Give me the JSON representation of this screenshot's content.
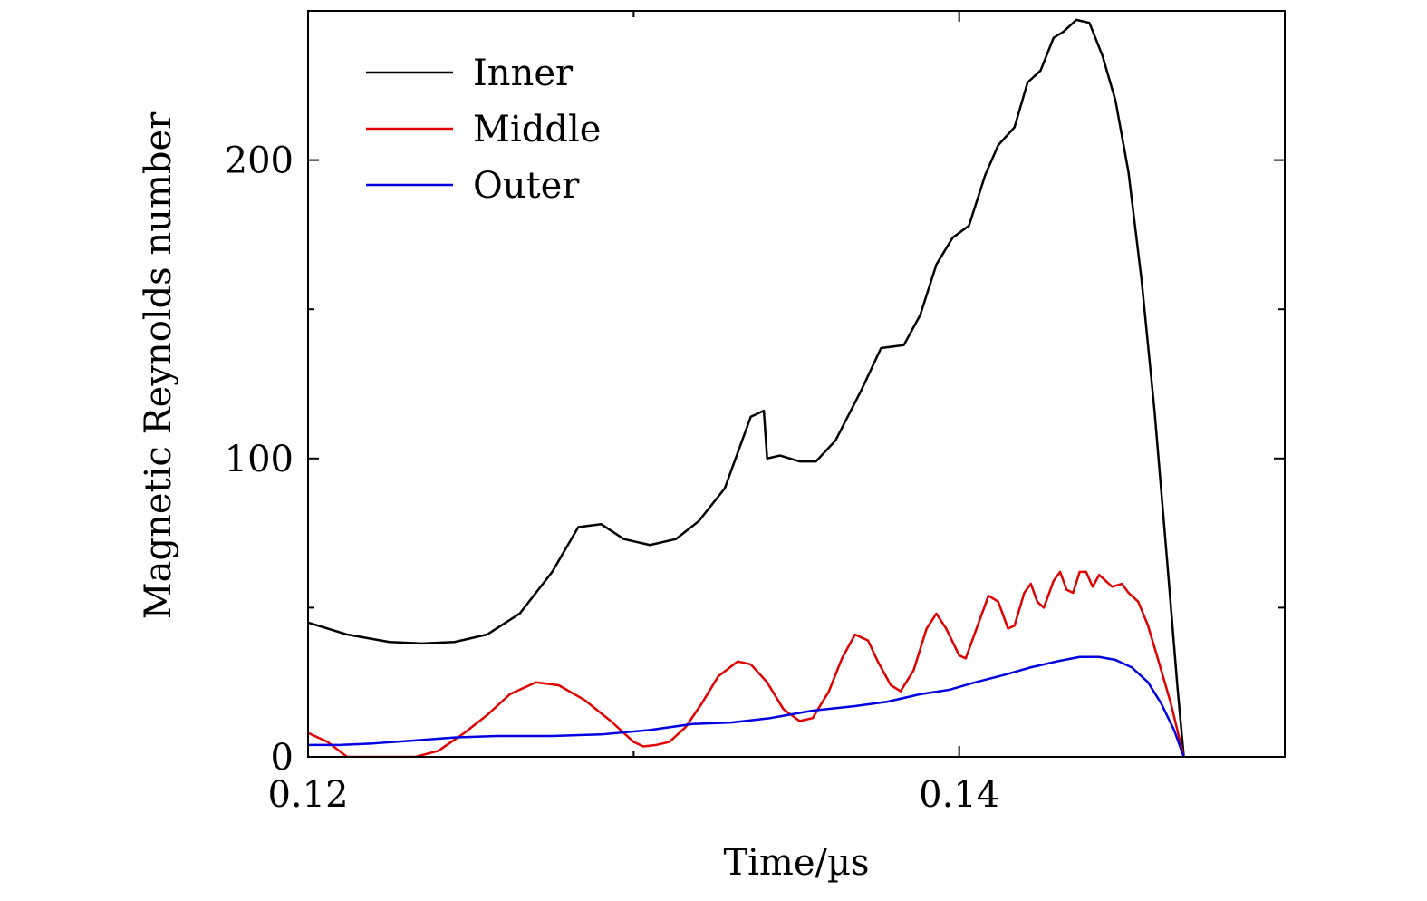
{
  "chart_data": {
    "type": "line",
    "title": "",
    "xlabel": "Time/µs",
    "ylabel": "Magnetic Reynolds number",
    "xlim": [
      0.12,
      0.15
    ],
    "ylim": [
      0,
      250
    ],
    "xticks": [
      {
        "value": 0.12,
        "label": "0.12"
      },
      {
        "value": 0.14,
        "label": "0.14"
      }
    ],
    "xminor_ticks": [
      0.13,
      0.15
    ],
    "yticks": [
      {
        "value": 0,
        "label": "0"
      },
      {
        "value": 100,
        "label": "100"
      },
      {
        "value": 200,
        "label": "200"
      }
    ],
    "yminor_ticks": [
      50,
      150
    ],
    "grid": false,
    "legend_position": "top-left",
    "series": [
      {
        "name": "Inner",
        "color": "#000000",
        "points": [
          [
            0.12,
            45
          ],
          [
            0.1212,
            41
          ],
          [
            0.1225,
            38.5
          ],
          [
            0.1235,
            38
          ],
          [
            0.1245,
            38.5
          ],
          [
            0.1255,
            41
          ],
          [
            0.1265,
            48
          ],
          [
            0.1275,
            62
          ],
          [
            0.1283,
            77
          ],
          [
            0.129,
            78
          ],
          [
            0.1297,
            73
          ],
          [
            0.1305,
            71
          ],
          [
            0.1313,
            73
          ],
          [
            0.132,
            79
          ],
          [
            0.1328,
            90
          ],
          [
            0.1333,
            105
          ],
          [
            0.1336,
            114
          ],
          [
            0.134,
            116
          ],
          [
            0.1341,
            100
          ],
          [
            0.1345,
            101
          ],
          [
            0.1351,
            99
          ],
          [
            0.1356,
            99
          ],
          [
            0.1362,
            106
          ],
          [
            0.137,
            123
          ],
          [
            0.1376,
            137
          ],
          [
            0.1383,
            138
          ],
          [
            0.1388,
            148
          ],
          [
            0.1393,
            165
          ],
          [
            0.1398,
            174
          ],
          [
            0.1403,
            178
          ],
          [
            0.1408,
            195
          ],
          [
            0.1412,
            205
          ],
          [
            0.1417,
            211
          ],
          [
            0.1421,
            226
          ],
          [
            0.1425,
            230
          ],
          [
            0.1429,
            241
          ],
          [
            0.1432,
            243
          ],
          [
            0.1436,
            247
          ],
          [
            0.144,
            246
          ],
          [
            0.1444,
            235
          ],
          [
            0.1448,
            220
          ],
          [
            0.1452,
            196
          ],
          [
            0.1456,
            160
          ],
          [
            0.146,
            116
          ],
          [
            0.1464,
            64
          ],
          [
            0.1467,
            24
          ],
          [
            0.1469,
            0
          ]
        ]
      },
      {
        "name": "Middle",
        "color": "#e00000",
        "points": [
          [
            0.12,
            8
          ],
          [
            0.1206,
            5
          ],
          [
            0.1212,
            0
          ],
          [
            0.123,
            0
          ],
          [
            0.1233,
            0
          ],
          [
            0.124,
            2
          ],
          [
            0.1248,
            8
          ],
          [
            0.1255,
            14
          ],
          [
            0.1262,
            21
          ],
          [
            0.127,
            25
          ],
          [
            0.1277,
            24
          ],
          [
            0.1285,
            19
          ],
          [
            0.1293,
            12
          ],
          [
            0.13,
            5
          ],
          [
            0.1303,
            3.5
          ],
          [
            0.1307,
            4
          ],
          [
            0.1311,
            5
          ],
          [
            0.1316,
            10
          ],
          [
            0.1321,
            18
          ],
          [
            0.1326,
            27
          ],
          [
            0.1332,
            32
          ],
          [
            0.1336,
            31
          ],
          [
            0.1341,
            25
          ],
          [
            0.1346,
            16
          ],
          [
            0.1351,
            12
          ],
          [
            0.1355,
            13
          ],
          [
            0.136,
            22
          ],
          [
            0.1364,
            33
          ],
          [
            0.1368,
            41
          ],
          [
            0.1372,
            39
          ],
          [
            0.1375,
            32
          ],
          [
            0.1379,
            24
          ],
          [
            0.1382,
            22
          ],
          [
            0.1386,
            29
          ],
          [
            0.139,
            43
          ],
          [
            0.1393,
            48
          ],
          [
            0.1396,
            43
          ],
          [
            0.14,
            34
          ],
          [
            0.1402,
            33
          ],
          [
            0.1406,
            45
          ],
          [
            0.1409,
            54
          ],
          [
            0.1412,
            52
          ],
          [
            0.1415,
            43
          ],
          [
            0.1417,
            44
          ],
          [
            0.142,
            55
          ],
          [
            0.1422,
            58
          ],
          [
            0.1424,
            52
          ],
          [
            0.1426,
            50
          ],
          [
            0.1429,
            59
          ],
          [
            0.1431,
            62
          ],
          [
            0.1433,
            56
          ],
          [
            0.1435,
            55
          ],
          [
            0.1437,
            62
          ],
          [
            0.1439,
            62
          ],
          [
            0.1441,
            57
          ],
          [
            0.1443,
            61
          ],
          [
            0.1445,
            59
          ],
          [
            0.1447,
            57
          ],
          [
            0.145,
            58
          ],
          [
            0.1452,
            55
          ],
          [
            0.1455,
            52
          ],
          [
            0.1458,
            44
          ],
          [
            0.1461,
            33
          ],
          [
            0.1465,
            18
          ],
          [
            0.1469,
            0
          ]
        ]
      },
      {
        "name": "Outer",
        "color": "#0000e0",
        "points": [
          [
            0.12,
            4
          ],
          [
            0.121,
            4
          ],
          [
            0.122,
            4.5
          ],
          [
            0.1233,
            5.5
          ],
          [
            0.1245,
            6.5
          ],
          [
            0.1258,
            7
          ],
          [
            0.1275,
            7
          ],
          [
            0.129,
            7.5
          ],
          [
            0.1305,
            9
          ],
          [
            0.1318,
            11
          ],
          [
            0.133,
            11.5
          ],
          [
            0.1342,
            13
          ],
          [
            0.1355,
            15.5
          ],
          [
            0.1368,
            17
          ],
          [
            0.1378,
            18.5
          ],
          [
            0.1388,
            21
          ],
          [
            0.1397,
            22.5
          ],
          [
            0.1405,
            25
          ],
          [
            0.1414,
            27.5
          ],
          [
            0.1422,
            30
          ],
          [
            0.143,
            32
          ],
          [
            0.1437,
            33.5
          ],
          [
            0.1443,
            33.5
          ],
          [
            0.1448,
            32.5
          ],
          [
            0.1453,
            30
          ],
          [
            0.1458,
            25
          ],
          [
            0.1462,
            18
          ],
          [
            0.1466,
            9
          ],
          [
            0.1469,
            0
          ]
        ]
      }
    ]
  }
}
